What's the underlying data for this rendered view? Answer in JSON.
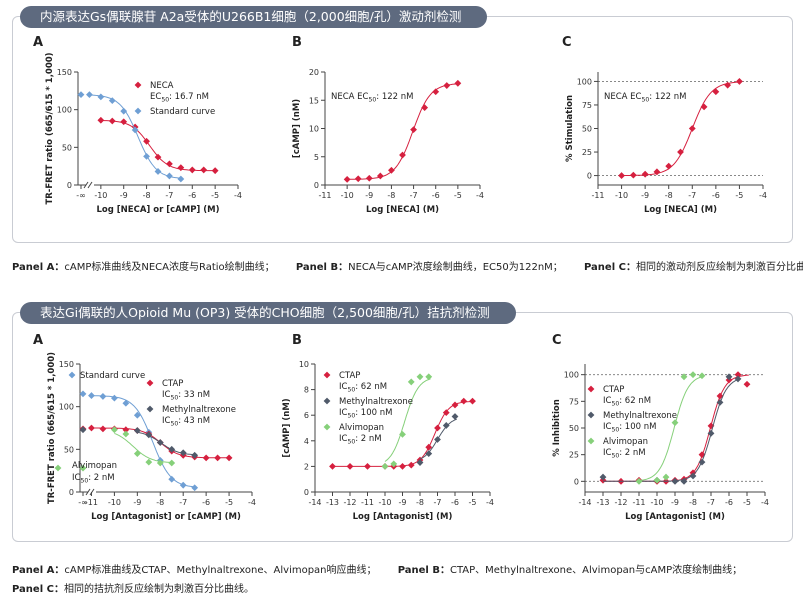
{
  "section1": {
    "title": "内源表达Gs偶联腺苷 A2a受体的U266B1细胞（2,000细胞/孔）激动剂检测",
    "captions": [
      {
        "label": "Panel A：",
        "text": "cAMP标准曲线及NECA浓度与Ratio绘制曲线；"
      },
      {
        "label": "Panel B：",
        "text": "NECA与cAMP浓度绘制曲线，EC50为122nM；"
      },
      {
        "label": "Panel C：",
        "text": "相同的激动剂反应绘制为刺激百分比曲线。"
      }
    ]
  },
  "section2": {
    "title": "表达Gi偶联的人Opioid Mu (OP3) 受体的CHO细胞（2,500细胞/孔）拮抗剂检测",
    "captions": [
      {
        "label": "Panel A：",
        "text": "cAMP标准曲线及CTAP、Methylnaltrexone、Alvimopan响应曲线；"
      },
      {
        "label": "Panel B：",
        "text": "CTAP、Methylnaltrexone、Alvimopan与cAMP浓度绘制曲线；"
      },
      {
        "label": "Panel C：",
        "text": "相同的拮抗剂反应绘制为刺激百分比曲线。"
      }
    ]
  },
  "colors": {
    "red": "#d6203f",
    "blue": "#6f9fd4",
    "slate": "#505a6a",
    "green": "#86d07a",
    "banner": "#5e6a7f",
    "axis": "#444444"
  },
  "chart_data": [
    {
      "id": "s1a",
      "panel": "A",
      "type": "scatter",
      "xlabel": "Log [NECA] or [cAMP] (M)",
      "ylabel": "TR-FRET ratio (665/615 * 1,000)",
      "xlim": [
        -11,
        -4
      ],
      "ylim": [
        0,
        150
      ],
      "xticks": [
        -10,
        -9,
        -8,
        -7,
        -6,
        -5,
        -4
      ],
      "yticks": [
        0,
        50,
        100,
        150
      ],
      "xbreak": true,
      "xbreak_label": "-∞",
      "legend_position": "right",
      "series": [
        {
          "name": "NECA",
          "annotation": "EC50: 16.7 nM",
          "color": "red",
          "marker": "diamond",
          "x": [
            -10,
            -9.5,
            -9,
            -8.5,
            -8,
            -7.5,
            -7,
            -6.5,
            -6,
            -5.5,
            -5
          ],
          "y": [
            86,
            85,
            84,
            77,
            58,
            37,
            28,
            23,
            20,
            20,
            19
          ]
        },
        {
          "name": "Standard curve",
          "color": "blue",
          "marker": "diamond",
          "break_point": 120,
          "x": [
            -10.5,
            -10,
            -9.5,
            -9,
            -8.5,
            -8,
            -7.5,
            -7,
            -6.5
          ],
          "y": [
            120,
            117,
            112,
            98,
            73,
            38,
            18,
            12,
            8
          ]
        }
      ]
    },
    {
      "id": "s1b",
      "panel": "B",
      "type": "scatter",
      "xlabel": "Log [NECA] (M)",
      "ylabel": "[cAMP] (nM)",
      "xlim": [
        -11,
        -4
      ],
      "ylim": [
        0,
        20
      ],
      "xticks": [
        -11,
        -10,
        -9,
        -8,
        -7,
        -6,
        -5,
        -4
      ],
      "yticks": [
        0,
        5,
        10,
        15,
        20
      ],
      "annotation": "NECA EC50: 122 nM",
      "series": [
        {
          "name": "NECA",
          "color": "red",
          "marker": "diamond",
          "x": [
            -10,
            -9.5,
            -9,
            -8.5,
            -8,
            -7.5,
            -7,
            -6.5,
            -6,
            -5.5,
            -5
          ],
          "y": [
            1,
            1.1,
            1.2,
            1.6,
            2.6,
            5.3,
            9.8,
            13.7,
            16.5,
            17.6,
            18
          ]
        }
      ]
    },
    {
      "id": "s1c",
      "panel": "C",
      "type": "scatter",
      "xlabel": "Log [NECA] (M)",
      "ylabel": "% Stimulation",
      "xlim": [
        -11,
        -4
      ],
      "ylim": [
        -10,
        110
      ],
      "xticks": [
        -11,
        -10,
        -9,
        -8,
        -7,
        -6,
        -5,
        -4
      ],
      "yticks": [
        0,
        25,
        50,
        75,
        100
      ],
      "ref_lines": [
        0,
        100
      ],
      "annotation": "NECA EC50: 122 nM",
      "series": [
        {
          "name": "NECA",
          "color": "red",
          "marker": "diamond",
          "x": [
            -10,
            -9.5,
            -9,
            -8.5,
            -8,
            -7.5,
            -7,
            -6.5,
            -6,
            -5.5,
            -5
          ],
          "y": [
            0,
            0.5,
            1.5,
            4,
            10,
            25,
            50,
            73,
            89,
            96,
            100
          ]
        }
      ]
    },
    {
      "id": "s2a",
      "panel": "A",
      "type": "scatter",
      "xlabel": "Log [Antagonist] or [cAMP] (M)",
      "ylabel": "TR-FRET ratio (665/615 * 1,000)",
      "xlim": [
        -11.5,
        -4
      ],
      "ylim": [
        0,
        150
      ],
      "xticks": [
        -11,
        -10,
        -9,
        -8,
        -7,
        -6,
        -5,
        -4
      ],
      "yticks": [
        0,
        50,
        100,
        150
      ],
      "xbreak": true,
      "xbreak_label": "-∞",
      "series": [
        {
          "name": "Standard curve",
          "color": "blue",
          "marker": "diamond",
          "break_point": 115,
          "x": [
            -11,
            -10.5,
            -10,
            -9.5,
            -9,
            -8.5,
            -8,
            -7.5,
            -7,
            -6.5
          ],
          "y": [
            113,
            112,
            110,
            104,
            90,
            70,
            37,
            15,
            8,
            5
          ]
        },
        {
          "name": "CTAP",
          "annotation": "IC50: 33 nM",
          "color": "red",
          "marker": "diamond",
          "break_point": 74,
          "x": [
            -11,
            -10.5,
            -10,
            -9.5,
            -9,
            -8.5,
            -8,
            -7.5,
            -7,
            -6.5,
            -6,
            -5.5,
            -5
          ],
          "y": [
            75,
            74,
            74,
            73,
            72,
            68,
            58,
            48,
            43,
            41,
            40,
            40,
            40
          ]
        },
        {
          "name": "Methylnaltrexone",
          "annotation": "IC50: 43 nM",
          "color": "slate",
          "marker": "diamond",
          "break_point": 73,
          "x": [
            -9,
            -8.5,
            -8,
            -7.5,
            -7,
            -6.5
          ],
          "y": [
            72,
            67,
            58,
            50,
            46,
            43
          ]
        },
        {
          "name": "Alvimopan",
          "annotation": "IC50: 2 nM",
          "color": "green",
          "marker": "diamond",
          "break_point": 28,
          "x": [
            -10,
            -9.5,
            -9,
            -8.5,
            -8,
            -7.5
          ],
          "y": [
            73,
            68,
            45,
            35,
            34,
            34
          ]
        }
      ]
    },
    {
      "id": "s2b",
      "panel": "B",
      "type": "scatter",
      "xlabel": "Log [Antagonist] (M)",
      "ylabel": "[cAMP] (nM)",
      "xlim": [
        -14,
        -4
      ],
      "ylim": [
        0,
        10
      ],
      "xticks": [
        -14,
        -13,
        -12,
        -11,
        -10,
        -9,
        -8,
        -7,
        -6,
        -5,
        -4
      ],
      "yticks": [
        0,
        2,
        4,
        6,
        8,
        10
      ],
      "series": [
        {
          "name": "CTAP",
          "annotation": "IC50: 62 nM",
          "color": "red",
          "marker": "diamond",
          "x": [
            -13,
            -12,
            -11,
            -10,
            -9.5,
            -9,
            -8.5,
            -8,
            -7.5,
            -7,
            -6.5,
            -6,
            -5.5,
            -5
          ],
          "y": [
            2,
            2,
            2,
            2,
            2,
            2,
            2.1,
            2.5,
            3.5,
            5,
            6.2,
            6.8,
            7.1,
            7.1
          ]
        },
        {
          "name": "Methylnaltrexone",
          "annotation": "IC50: 100 nM",
          "color": "slate",
          "marker": "diamond",
          "x": [
            -8,
            -7.5,
            -7,
            -6.5,
            -6
          ],
          "y": [
            2.3,
            3,
            4.1,
            5.2,
            5.9
          ]
        },
        {
          "name": "Alvimopan",
          "annotation": "IC50: 2 nM",
          "color": "green",
          "marker": "diamond",
          "x": [
            -10,
            -9.5,
            -9,
            -8.5,
            -8,
            -7.5
          ],
          "y": [
            2,
            2.2,
            4.5,
            8.6,
            9,
            9
          ]
        }
      ]
    },
    {
      "id": "s2c",
      "panel": "C",
      "type": "scatter",
      "xlabel": "Log [Antagonist] (M)",
      "ylabel": "% Inhibition",
      "xlim": [
        -14,
        -4
      ],
      "ylim": [
        -10,
        110
      ],
      "xticks": [
        -14,
        -13,
        -12,
        -11,
        -10,
        -9,
        -8,
        -7,
        -6,
        -5,
        -4
      ],
      "yticks": [
        0,
        25,
        50,
        75,
        100
      ],
      "ref_lines": [
        0,
        100
      ],
      "series": [
        {
          "name": "CTAP",
          "annotation": "IC50: 62 nM",
          "color": "red",
          "marker": "diamond",
          "x": [
            -13,
            -12,
            -11,
            -10,
            -9.5,
            -9,
            -8.5,
            -8,
            -7.5,
            -7,
            -6.5,
            -6,
            -5.5,
            -5
          ],
          "y": [
            1,
            0,
            1,
            0,
            0,
            1,
            2,
            8,
            25,
            52,
            80,
            95,
            100,
            91
          ]
        },
        {
          "name": "Methylnaltrexone",
          "annotation": "IC50: 100 nM",
          "color": "slate",
          "marker": "diamond",
          "x": [
            -13,
            -10,
            -9,
            -8.5,
            -8,
            -7.5,
            -7,
            -6.5,
            -6,
            -5.5
          ],
          "y": [
            4,
            1,
            0,
            0,
            5,
            18,
            45,
            74,
            98,
            96
          ]
        },
        {
          "name": "Alvimopan",
          "annotation": "IC50: 2 nM",
          "color": "green",
          "marker": "diamond",
          "x": [
            -11,
            -10,
            -9.5,
            -9,
            -8.5,
            -8,
            -7.5
          ],
          "y": [
            0,
            1,
            4,
            55,
            98,
            100,
            99
          ]
        }
      ]
    }
  ]
}
